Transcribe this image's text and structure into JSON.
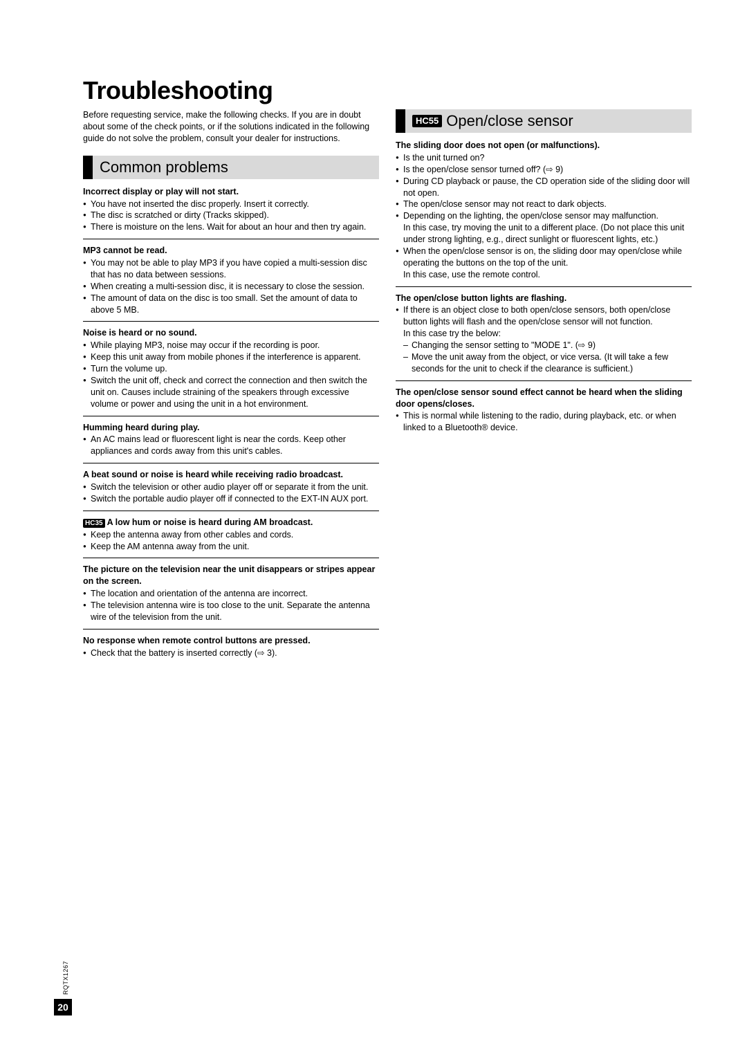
{
  "page_title": "Troubleshooting",
  "intro": "Before requesting service, make the following checks. If you are in doubt about some of the check points, or if the solutions indicated in the following guide do not solve the problem, consult your dealer for instructions.",
  "left": {
    "section_title": "Common problems",
    "items": [
      {
        "title": "Incorrect display or play will not start.",
        "bullets": [
          "You have not inserted the disc properly. Insert it correctly.",
          "The disc is scratched or dirty (Tracks skipped).",
          "There is moisture on the lens. Wait for about an hour and then try again."
        ]
      },
      {
        "title": "MP3 cannot be read.",
        "bullets": [
          "You may not be able to play MP3 if you have copied a multi-session disc that has no data between sessions.",
          "When creating a multi-session disc, it is necessary to close the session.",
          "The amount of data on the disc is too small. Set the amount of data to above 5 MB."
        ]
      },
      {
        "title": "Noise is heard or no sound.",
        "bullets": [
          "While playing MP3, noise may occur if the recording is poor.",
          "Keep this unit away from mobile phones if the interference is apparent.",
          "Turn the volume up.",
          "Switch the unit off, check and correct the connection and then switch the unit on. Causes include straining of the speakers through excessive volume or power and using the unit in a hot environment."
        ]
      },
      {
        "title": "Humming heard during play.",
        "bullets": [
          "An AC mains lead or fluorescent light is near the cords. Keep other appliances and cords away from this unit's cables."
        ]
      },
      {
        "title": "A beat sound or noise is heard while receiving radio broadcast.",
        "bullets": [
          "Switch the television or other audio player off or separate it from the unit.",
          "Switch the portable audio player off if connected to the EXT-IN AUX port."
        ]
      },
      {
        "badge": "HC35",
        "title": " A low hum or noise is heard during AM broadcast.",
        "bullets": [
          "Keep the antenna away from other cables and cords.",
          "Keep the AM antenna away from the unit."
        ]
      },
      {
        "title": "The picture on the television near the unit disappears or stripes appear on the screen.",
        "bullets": [
          "The location and orientation of the antenna are incorrect.",
          "The television antenna wire is too close to the unit. Separate the antenna wire of the television from the unit."
        ]
      },
      {
        "title": "No response when remote control buttons are pressed.",
        "bullets": [
          "Check that the battery is inserted correctly (⇨ 3)."
        ]
      }
    ]
  },
  "right": {
    "section_badge": "HC55",
    "section_title": "Open/close sensor",
    "items": [
      {
        "title": "The sliding door does not open (or malfunctions).",
        "bullets": [
          "Is the unit turned on?",
          "Is the open/close sensor turned off? (⇨ 9)",
          "During CD playback or pause, the CD operation side of the sliding door will not open.",
          "The open/close sensor may not react to dark objects.",
          "Depending on the lighting, the open/close sensor may malfunction.\nIn this case, try moving the unit to a different place. (Do not place this unit under strong lighting, e.g., direct sunlight or fluorescent lights, etc.)",
          "When the open/close sensor is on, the sliding door may open/close while operating the buttons on the top of the unit.\nIn this case, use the remote control."
        ]
      },
      {
        "title": "The open/close button lights are flashing.",
        "bullets": [
          "If there is an object close to both open/close sensors, both open/close button lights will flash and the open/close sensor will not function.\nIn this case try the below:"
        ],
        "dashes": [
          "Changing the sensor setting to \"MODE 1\". (⇨ 9)",
          "Move the unit away from the object, or vice versa. (It will take a few seconds for the unit to check if the clearance is sufficient.)"
        ]
      },
      {
        "title": "The open/close sensor sound effect cannot be heard when the sliding door opens/closes.",
        "bullets": [
          "This is normal while listening to the radio, during playback, etc. or when linked to a Bluetooth® device."
        ]
      }
    ]
  },
  "page_number": "20",
  "doc_code": "RQTX1267",
  "colors": {
    "section_bg": "#d9d9d9",
    "bar": "#000000",
    "text": "#000000"
  }
}
